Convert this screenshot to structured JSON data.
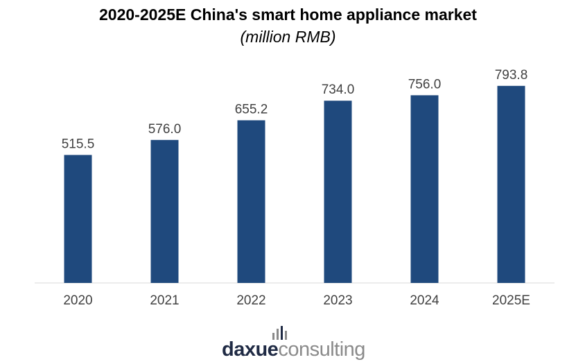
{
  "chart_data": {
    "type": "bar",
    "title": "2020-2025E China's smart home appliance market",
    "subtitle": "(million RMB)",
    "categories": [
      "2020",
      "2021",
      "2022",
      "2023",
      "2024",
      "2025E"
    ],
    "values": [
      515.5,
      576.0,
      655.2,
      734.0,
      756.0,
      793.8
    ],
    "value_labels": [
      "515.5",
      "576.0",
      "655.2",
      "734.0",
      "756.0",
      "793.8"
    ],
    "ylim": [
      0,
      800
    ],
    "grid": false,
    "legend": "none",
    "bar_color": "#1f497d",
    "axis_color": "#d9d9d9",
    "label_color": "#404040"
  },
  "branding": {
    "logo_part1": "daxue",
    "logo_part2": "consulting"
  }
}
